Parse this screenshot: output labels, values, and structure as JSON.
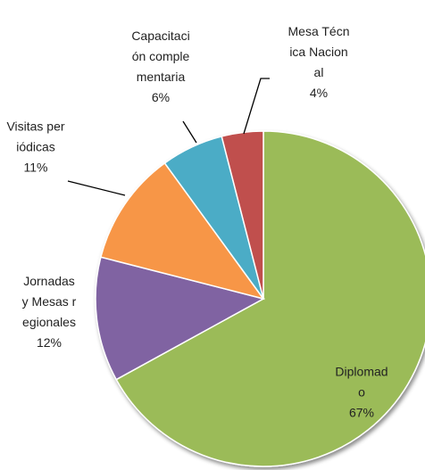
{
  "chart_data": {
    "type": "pie",
    "categories": [
      "Diplomado",
      "Jornadas y Mesas regionales",
      "Visitas periódicas",
      "Capacitación complementaria",
      "Mesa Técnica Nacional"
    ],
    "values": [
      67,
      12,
      11,
      6,
      4
    ],
    "value_labels": [
      "67%",
      "12%",
      "11%",
      "6%",
      "4%"
    ],
    "colors": [
      "#9bbb59",
      "#8064a2",
      "#f79646",
      "#4bacc6",
      "#c0504d"
    ]
  }
}
